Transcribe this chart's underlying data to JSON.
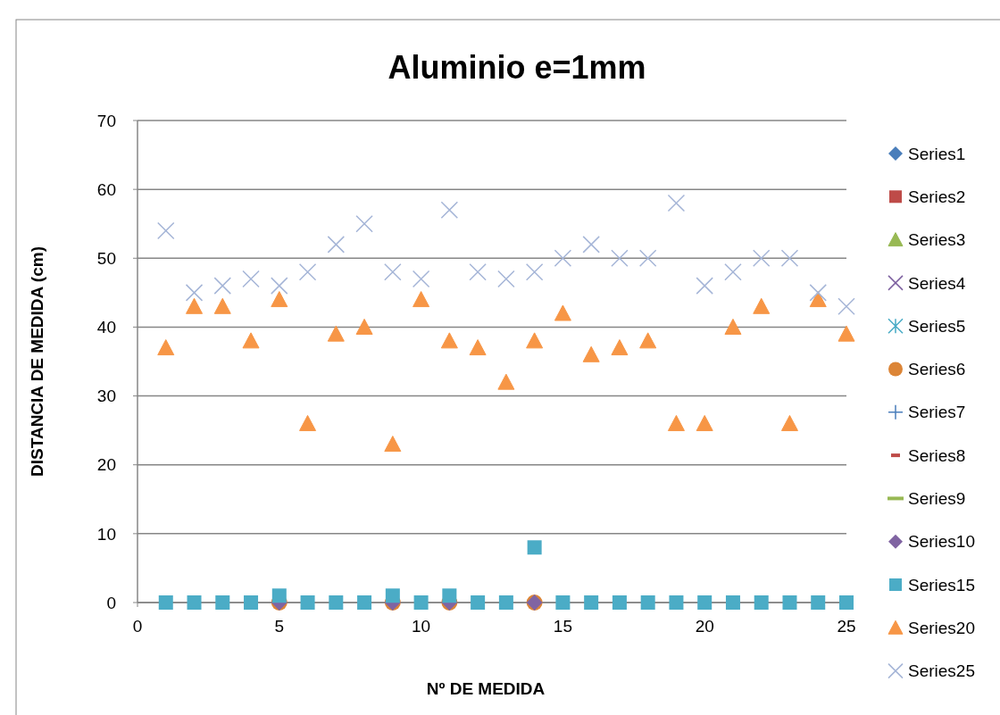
{
  "chart_data": {
    "type": "scatter",
    "title": "Aluminio e=1mm",
    "xlabel": "Nº DE MEDIDA",
    "ylabel": "DISTANCIA DE MEDIDA (cm)",
    "x": [
      1,
      2,
      3,
      4,
      5,
      6,
      7,
      8,
      9,
      10,
      11,
      12,
      13,
      14,
      15,
      16,
      17,
      18,
      19,
      20,
      21,
      22,
      23,
      24,
      25
    ],
    "xlim": [
      0,
      25
    ],
    "xticks": [
      0,
      5,
      10,
      15,
      20,
      25
    ],
    "ylim": [
      0,
      70
    ],
    "yticks": [
      0,
      10,
      20,
      30,
      40,
      50,
      60,
      70
    ],
    "grid": "y",
    "legend": "right",
    "series": [
      {
        "name": "Series1",
        "color": "#4a7ebb",
        "marker": "diamond",
        "values": [
          null,
          null,
          null,
          null,
          null,
          null,
          null,
          null,
          null,
          null,
          null,
          null,
          null,
          null,
          null,
          null,
          null,
          null,
          null,
          null,
          null,
          null,
          null,
          null,
          null
        ]
      },
      {
        "name": "Series2",
        "color": "#be4b48",
        "marker": "square",
        "values": [
          null,
          null,
          null,
          null,
          null,
          null,
          null,
          null,
          null,
          null,
          null,
          null,
          null,
          null,
          null,
          null,
          null,
          null,
          null,
          null,
          null,
          null,
          null,
          null,
          null
        ]
      },
      {
        "name": "Series3",
        "color": "#98b954",
        "marker": "triangle",
        "values": [
          null,
          null,
          null,
          null,
          null,
          null,
          null,
          null,
          null,
          null,
          null,
          null,
          null,
          null,
          null,
          null,
          null,
          null,
          null,
          null,
          null,
          null,
          null,
          null,
          null
        ]
      },
      {
        "name": "Series4",
        "color": "#7d60a0",
        "marker": "cross",
        "values": [
          null,
          null,
          null,
          null,
          null,
          null,
          null,
          null,
          null,
          null,
          null,
          null,
          null,
          null,
          null,
          null,
          null,
          null,
          null,
          null,
          null,
          null,
          null,
          null,
          null
        ]
      },
      {
        "name": "Series5",
        "color": "#46aac5",
        "marker": "star",
        "values": [
          null,
          null,
          null,
          null,
          null,
          null,
          null,
          null,
          null,
          null,
          null,
          null,
          null,
          null,
          null,
          null,
          null,
          null,
          null,
          null,
          null,
          null,
          null,
          null,
          null
        ]
      },
      {
        "name": "Series6",
        "color": "#dc8537",
        "marker": "circle",
        "values": [
          null,
          null,
          null,
          null,
          0,
          null,
          null,
          null,
          0,
          null,
          0,
          null,
          null,
          0,
          null,
          null,
          null,
          null,
          null,
          null,
          null,
          null,
          null,
          null,
          null
        ]
      },
      {
        "name": "Series7",
        "color": "#4a7ebb",
        "marker": "plus",
        "values": [
          null,
          null,
          null,
          null,
          null,
          null,
          null,
          null,
          null,
          null,
          null,
          null,
          null,
          null,
          null,
          null,
          null,
          null,
          null,
          null,
          null,
          null,
          null,
          null,
          null
        ]
      },
      {
        "name": "Series8",
        "color": "#be4b48",
        "marker": "minus",
        "values": [
          null,
          null,
          null,
          null,
          null,
          null,
          null,
          null,
          null,
          null,
          null,
          null,
          null,
          null,
          null,
          null,
          null,
          null,
          null,
          null,
          null,
          null,
          null,
          null,
          null
        ]
      },
      {
        "name": "Series9",
        "color": "#98b954",
        "marker": "dash",
        "values": [
          null,
          null,
          null,
          null,
          null,
          null,
          null,
          null,
          null,
          null,
          null,
          null,
          null,
          null,
          null,
          null,
          null,
          null,
          null,
          null,
          null,
          null,
          null,
          null,
          null
        ]
      },
      {
        "name": "Series10",
        "color": "#8064a2",
        "marker": "diamond",
        "values": [
          null,
          null,
          null,
          null,
          0,
          null,
          null,
          null,
          0,
          null,
          0,
          null,
          null,
          0,
          null,
          null,
          null,
          null,
          null,
          null,
          null,
          null,
          null,
          null,
          null
        ]
      },
      {
        "name": "Series15",
        "color": "#4bacc6",
        "marker": "square",
        "values": [
          0,
          0,
          0,
          0,
          1,
          0,
          0,
          0,
          1,
          0,
          1,
          0,
          0,
          8,
          0,
          0,
          0,
          0,
          0,
          0,
          0,
          0,
          0,
          0,
          0
        ]
      },
      {
        "name": "Series20",
        "color": "#f79646",
        "marker": "triangle",
        "values": [
          37,
          43,
          43,
          38,
          44,
          26,
          39,
          40,
          23,
          44,
          38,
          37,
          32,
          38,
          42,
          36,
          37,
          38,
          26,
          26,
          40,
          43,
          26,
          44,
          39
        ]
      },
      {
        "name": "Series25",
        "color": "#a5b5d7",
        "marker": "cross",
        "values": [
          54,
          45,
          46,
          47,
          46,
          48,
          52,
          55,
          48,
          47,
          57,
          48,
          47,
          48,
          50,
          52,
          50,
          50,
          58,
          46,
          48,
          50,
          50,
          45,
          43
        ]
      }
    ]
  }
}
